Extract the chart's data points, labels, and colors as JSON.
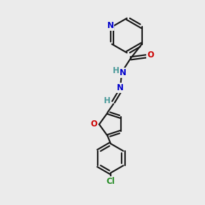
{
  "bg_color": "#ebebeb",
  "bond_color": "#1a1a1a",
  "N_color": "#0000cc",
  "O_color": "#cc0000",
  "Cl_color": "#228B22",
  "H_color": "#4a9a9a",
  "line_width": 1.6,
  "font_size": 8.5,
  "dbo": 0.07,
  "figsize": [
    3.0,
    3.0
  ],
  "dpi": 100,
  "xlim": [
    0,
    10
  ],
  "ylim": [
    0,
    10
  ]
}
